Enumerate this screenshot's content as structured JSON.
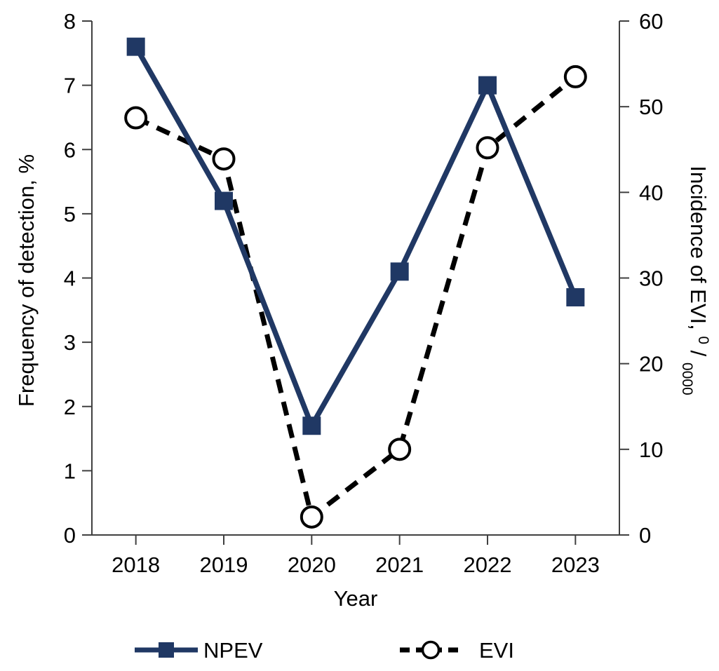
{
  "figure": {
    "background_color": "#ffffff",
    "axis_line_color": "#404040",
    "text_color": "#000000",
    "x_axis": {
      "title": "Year",
      "categories": [
        "2018",
        "2019",
        "2020",
        "2021",
        "2022",
        "2023"
      ]
    },
    "y_left_axis": {
      "title": "Frequency of detection, %",
      "ticks": [
        "0",
        "1",
        "2",
        "3",
        "4",
        "5",
        "6",
        "7",
        "8"
      ],
      "min": 0,
      "max": 8
    },
    "y_right_axis": {
      "title_main": "Incidence of EVI, ",
      "title_sup": "0",
      "title_slash": "/",
      "title_sub": "0000",
      "ticks": [
        "0",
        "10",
        "20",
        "30",
        "40",
        "50",
        "60"
      ],
      "min": 0,
      "max": 60
    }
  },
  "chart_data": {
    "type": "line",
    "categories": [
      "2018",
      "2019",
      "2020",
      "2021",
      "2022",
      "2023"
    ],
    "series": [
      {
        "name": "NPEV",
        "axis": "left",
        "values": [
          7.6,
          5.2,
          1.7,
          4.1,
          7.0,
          3.7
        ],
        "color": "#203864",
        "line_style": "solid",
        "marker": "filled-square"
      },
      {
        "name": "EVI",
        "axis": "right",
        "values": [
          48.7,
          43.9,
          2.1,
          10.0,
          45.2,
          53.5
        ],
        "color": "#000000",
        "line_style": "dashed",
        "marker": "open-circle"
      }
    ],
    "title": "",
    "xlabel": "Year",
    "ylabel_left": "Frequency of detection, %",
    "ylabel_right": "Incidence of EVI, 0/0000",
    "ylim_left": [
      0,
      8
    ],
    "ylim_right": [
      0,
      60
    ],
    "grid": false,
    "legend_position": "bottom"
  },
  "legend": {
    "items": [
      {
        "label": "NPEV"
      },
      {
        "label": "EVI"
      }
    ]
  }
}
